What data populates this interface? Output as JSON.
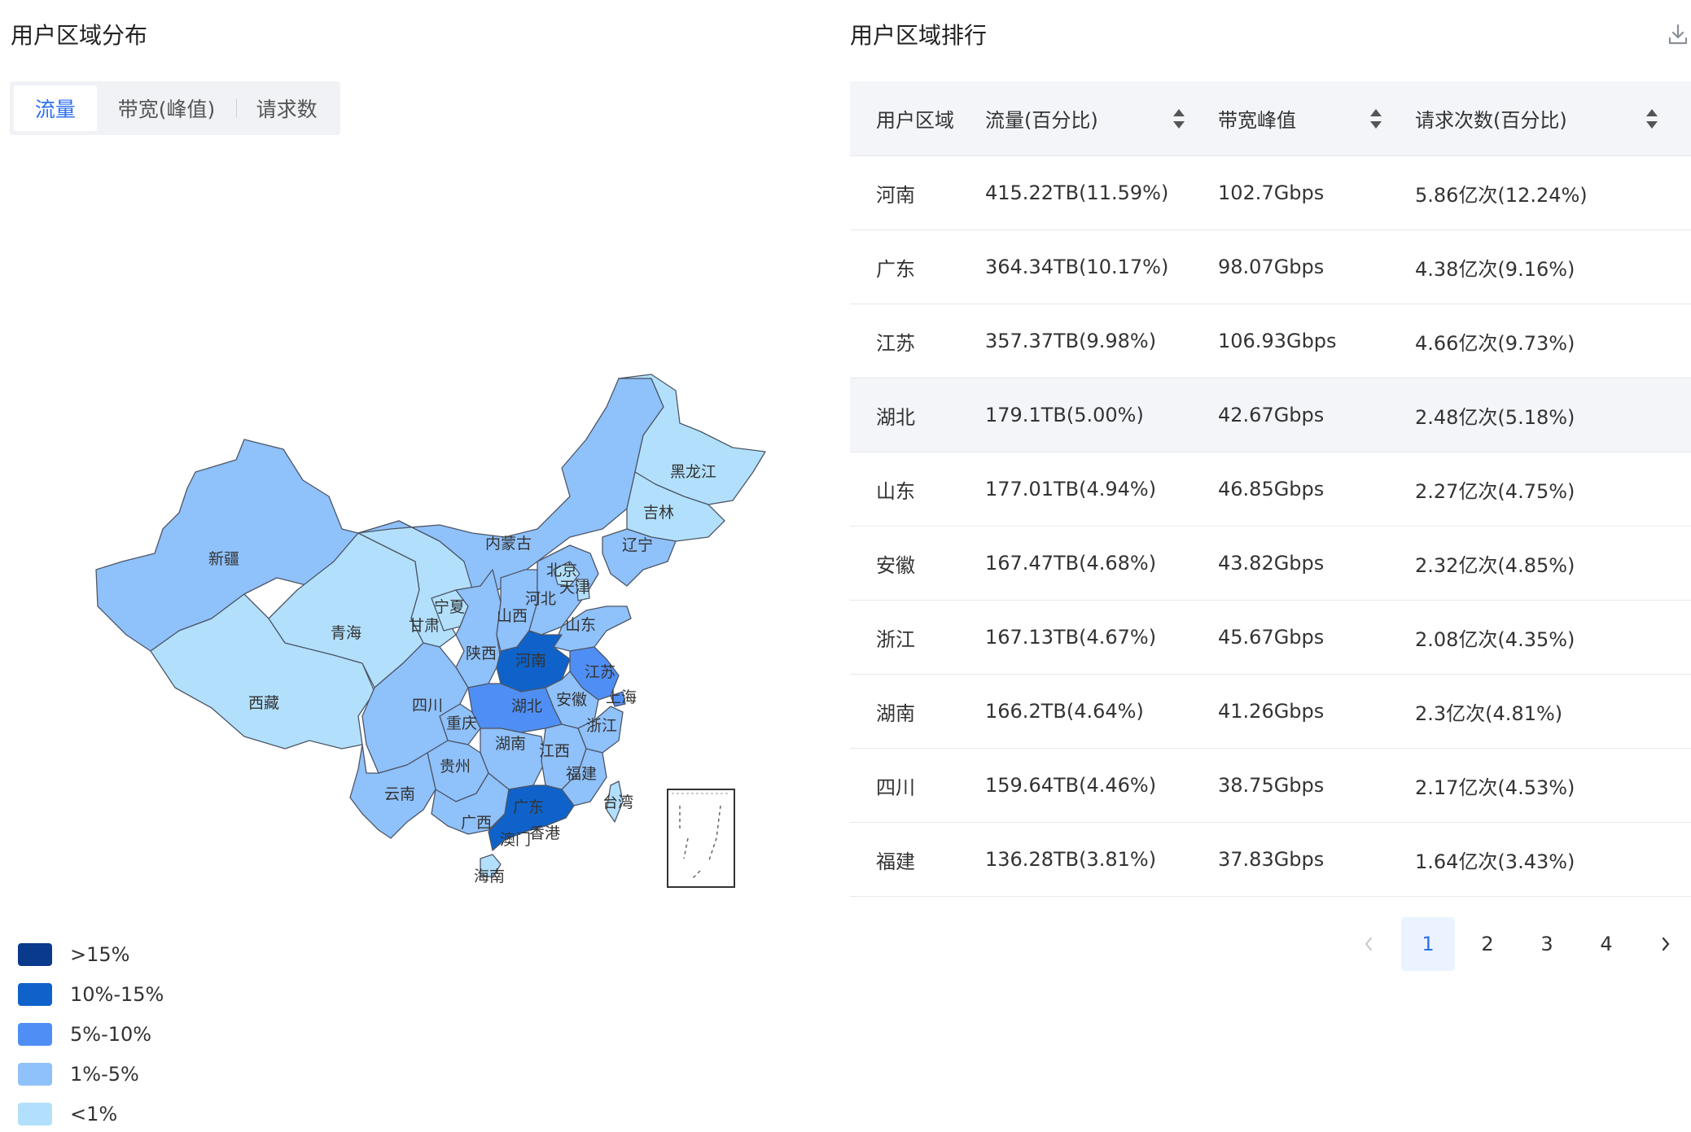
{
  "left": {
    "title": "用户区域分布",
    "tabs": [
      {
        "label": "流量",
        "active": true
      },
      {
        "label": "带宽(峰值)",
        "active": false
      },
      {
        "label": "请求数",
        "active": false
      }
    ],
    "legend": [
      {
        "label": ">15%",
        "color": "#0a3a8c"
      },
      {
        "label": "10%-15%",
        "color": "#0f62c9"
      },
      {
        "label": "5%-10%",
        "color": "#4f8ff5"
      },
      {
        "label": "1%-5%",
        "color": "#8fc1fb"
      },
      {
        "label": "<1%",
        "color": "#b2e0fc"
      }
    ],
    "map_labels": {
      "xinjiang": "新疆",
      "xizang": "西藏",
      "qinghai": "青海",
      "gansu": "甘肃",
      "ningxia": "宁夏",
      "neimenggu": "内蒙古",
      "heilongjiang": "黑龙江",
      "jilin": "吉林",
      "liaoning": "辽宁",
      "beijing": "北京",
      "tianjin": "天津",
      "hebei": "河北",
      "shanxi": "山西",
      "shandong": "山东",
      "henan": "河南",
      "shaanxi": "陕西",
      "sichuan": "四川",
      "chongqing": "重庆",
      "hubei": "湖北",
      "anhui": "安徽",
      "jiangsu": "江苏",
      "shanghai": "上海",
      "zhejiang": "浙江",
      "hunan": "湖南",
      "jiangxi": "江西",
      "guizhou": "贵州",
      "yunnan": "云南",
      "guangxi": "广西",
      "guangdong": "广东",
      "fujian": "福建",
      "taiwan": "台湾",
      "hainan": "海南",
      "xianggang": "香港",
      "aomen": "澳门"
    }
  },
  "right": {
    "title": "用户区域排行",
    "columns": [
      "用户区域",
      "流量(百分比)",
      "带宽峰值",
      "请求次数(百分比)"
    ],
    "rows": [
      [
        "河南",
        "415.22TB(11.59%)",
        "102.7Gbps",
        "5.86亿次(12.24%)"
      ],
      [
        "广东",
        "364.34TB(10.17%)",
        "98.07Gbps",
        "4.38亿次(9.16%)"
      ],
      [
        "江苏",
        "357.37TB(9.98%)",
        "106.93Gbps",
        "4.66亿次(9.73%)"
      ],
      [
        "湖北",
        "179.1TB(5.00%)",
        "42.67Gbps",
        "2.48亿次(5.18%)"
      ],
      [
        "山东",
        "177.01TB(4.94%)",
        "46.85Gbps",
        "2.27亿次(4.75%)"
      ],
      [
        "安徽",
        "167.47TB(4.68%)",
        "43.82Gbps",
        "2.32亿次(4.85%)"
      ],
      [
        "浙江",
        "167.13TB(4.67%)",
        "45.67Gbps",
        "2.08亿次(4.35%)"
      ],
      [
        "湖南",
        "166.2TB(4.64%)",
        "41.26Gbps",
        "2.3亿次(4.81%)"
      ],
      [
        "四川",
        "159.64TB(4.46%)",
        "38.75Gbps",
        "2.17亿次(4.53%)"
      ],
      [
        "福建",
        "136.28TB(3.81%)",
        "37.83Gbps",
        "1.64亿次(3.43%)"
      ]
    ],
    "pagination": {
      "pages": [
        "1",
        "2",
        "3",
        "4"
      ],
      "current": "1"
    }
  }
}
